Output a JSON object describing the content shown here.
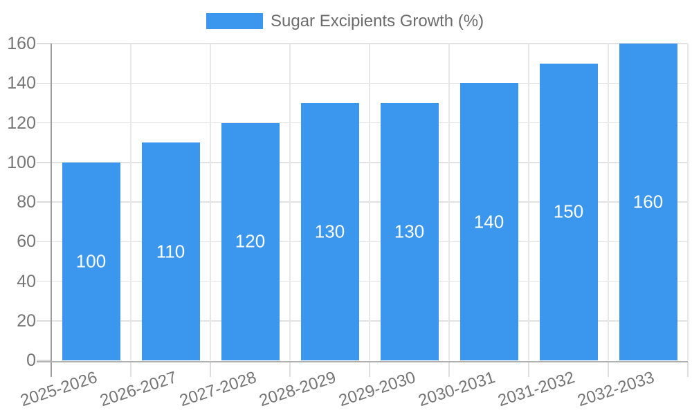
{
  "legend": {
    "label": "Sugar Excipients Growth (%)"
  },
  "chart_data": {
    "type": "bar",
    "title": "Sugar Excipients Growth (%)",
    "categories": [
      "2025-2026",
      "2026-2027",
      "2027-2028",
      "2028-2029",
      "2029-2030",
      "2030-2031",
      "2031-2032",
      "2032-2033"
    ],
    "values": [
      100,
      110,
      120,
      130,
      130,
      140,
      150,
      160
    ],
    "xlabel": "",
    "ylabel": "",
    "ylim": [
      0,
      160
    ],
    "yticks": [
      0,
      20,
      40,
      60,
      80,
      100,
      120,
      140,
      160
    ],
    "grid": true,
    "legend_position": "top",
    "bar_color": "#3b97ee",
    "value_label_color": "#ffffff",
    "axis_text_color": "#757575"
  },
  "colors": {
    "bar": "#3b97ee",
    "axis_text": "#757575",
    "legend_text": "#6b6b6b",
    "gridline": "#e2e2e2",
    "y_axis_line": "#9e9e9e",
    "x_axis_line": "#b0b0b0",
    "background": "#ffffff"
  }
}
